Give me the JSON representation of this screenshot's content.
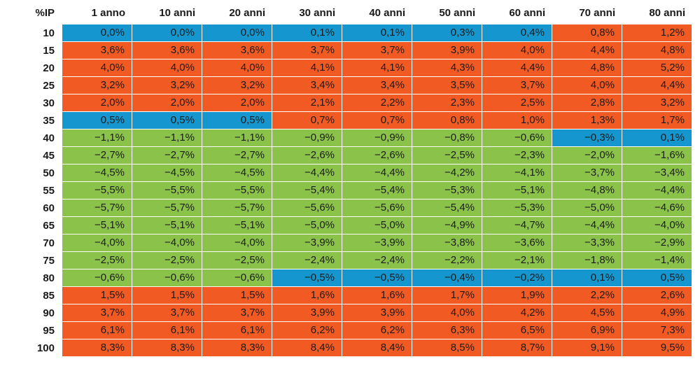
{
  "chart_data": {
    "type": "heatmap",
    "title": "",
    "row_header": "%IP",
    "columns": [
      "1 anno",
      "10 anni",
      "20 anni",
      "30 anni",
      "40 anni",
      "50 anni",
      "60 anni",
      "70 anni",
      "80 anni"
    ],
    "rows": [
      "10",
      "15",
      "20",
      "25",
      "30",
      "35",
      "40",
      "45",
      "50",
      "55",
      "60",
      "65",
      "70",
      "75",
      "80",
      "85",
      "90",
      "95",
      "100"
    ],
    "values": [
      [
        "0,0%",
        "0,0%",
        "0,0%",
        "0,1%",
        "0,1%",
        "0,3%",
        "0,4%",
        "0,8%",
        "1,2%"
      ],
      [
        "3,6%",
        "3,6%",
        "3,6%",
        "3,7%",
        "3,7%",
        "3,9%",
        "4,0%",
        "4,4%",
        "4,8%"
      ],
      [
        "4,0%",
        "4,0%",
        "4,0%",
        "4,1%",
        "4,1%",
        "4,3%",
        "4,4%",
        "4,8%",
        "5,2%"
      ],
      [
        "3,2%",
        "3,2%",
        "3,2%",
        "3,4%",
        "3,4%",
        "3,5%",
        "3,7%",
        "4,0%",
        "4,4%"
      ],
      [
        "2,0%",
        "2,0%",
        "2,0%",
        "2,1%",
        "2,2%",
        "2,3%",
        "2,5%",
        "2,8%",
        "3,2%"
      ],
      [
        "0,5%",
        "0,5%",
        "0,5%",
        "0,7%",
        "0,7%",
        "0,8%",
        "1,0%",
        "1,3%",
        "1,7%"
      ],
      [
        "-1,1%",
        "-1,1%",
        "-1,1%",
        "-0,9%",
        "-0,9%",
        "-0,8%",
        "-0,6%",
        "-0,3%",
        "0,1%"
      ],
      [
        "-2,7%",
        "-2,7%",
        "-2,7%",
        "-2,6%",
        "-2,6%",
        "-2,5%",
        "-2,3%",
        "-2,0%",
        "-1,6%"
      ],
      [
        "-4,5%",
        "-4,5%",
        "-4,5%",
        "-4,4%",
        "-4,4%",
        "-4,2%",
        "-4,1%",
        "-3,7%",
        "-3,4%"
      ],
      [
        "-5,5%",
        "-5,5%",
        "-5,5%",
        "-5,4%",
        "-5,4%",
        "-5,3%",
        "-5,1%",
        "-4,8%",
        "-4,4%"
      ],
      [
        "-5,7%",
        "-5,7%",
        "-5,7%",
        "-5,6%",
        "-5,6%",
        "-5,4%",
        "-5,3%",
        "-5,0%",
        "-4,6%"
      ],
      [
        "-5,1%",
        "-5,1%",
        "-5,1%",
        "-5,0%",
        "-5,0%",
        "-4,9%",
        "-4,7%",
        "-4,4%",
        "-4,0%"
      ],
      [
        "-4,0%",
        "-4,0%",
        "-4,0%",
        "-3,9%",
        "-3,9%",
        "-3,8%",
        "-3,6%",
        "-3,3%",
        "-2,9%"
      ],
      [
        "-2,5%",
        "-2,5%",
        "-2,5%",
        "-2,4%",
        "-2,4%",
        "-2,2%",
        "-2,1%",
        "-1,8%",
        "-1,4%"
      ],
      [
        "-0,6%",
        "-0,6%",
        "-0,6%",
        "-0,5%",
        "-0,5%",
        "-0,4%",
        "-0,2%",
        "0,1%",
        "0,5%"
      ],
      [
        "1,5%",
        "1,5%",
        "1,5%",
        "1,6%",
        "1,6%",
        "1,7%",
        "1,9%",
        "2,2%",
        "2,6%"
      ],
      [
        "3,7%",
        "3,7%",
        "3,7%",
        "3,9%",
        "3,9%",
        "4,0%",
        "4,2%",
        "4,5%",
        "4,9%"
      ],
      [
        "6,1%",
        "6,1%",
        "6,1%",
        "6,2%",
        "6,2%",
        "6,3%",
        "6,5%",
        "6,9%",
        "7,3%"
      ],
      [
        "8,3%",
        "8,3%",
        "8,3%",
        "8,4%",
        "8,4%",
        "8,5%",
        "8,7%",
        "9,1%",
        "9,5%"
      ]
    ],
    "categories": [
      [
        "b",
        "b",
        "b",
        "b",
        "b",
        "b",
        "b",
        "o",
        "o"
      ],
      [
        "o",
        "o",
        "o",
        "o",
        "o",
        "o",
        "o",
        "o",
        "o"
      ],
      [
        "o",
        "o",
        "o",
        "o",
        "o",
        "o",
        "o",
        "o",
        "o"
      ],
      [
        "o",
        "o",
        "o",
        "o",
        "o",
        "o",
        "o",
        "o",
        "o"
      ],
      [
        "o",
        "o",
        "o",
        "o",
        "o",
        "o",
        "o",
        "o",
        "o"
      ],
      [
        "b",
        "b",
        "b",
        "o",
        "o",
        "o",
        "o",
        "o",
        "o"
      ],
      [
        "g",
        "g",
        "g",
        "g",
        "g",
        "g",
        "g",
        "b",
        "b"
      ],
      [
        "g",
        "g",
        "g",
        "g",
        "g",
        "g",
        "g",
        "g",
        "g"
      ],
      [
        "g",
        "g",
        "g",
        "g",
        "g",
        "g",
        "g",
        "g",
        "g"
      ],
      [
        "g",
        "g",
        "g",
        "g",
        "g",
        "g",
        "g",
        "g",
        "g"
      ],
      [
        "g",
        "g",
        "g",
        "g",
        "g",
        "g",
        "g",
        "g",
        "g"
      ],
      [
        "g",
        "g",
        "g",
        "g",
        "g",
        "g",
        "g",
        "g",
        "g"
      ],
      [
        "g",
        "g",
        "g",
        "g",
        "g",
        "g",
        "g",
        "g",
        "g"
      ],
      [
        "g",
        "g",
        "g",
        "g",
        "g",
        "g",
        "g",
        "g",
        "g"
      ],
      [
        "g",
        "g",
        "g",
        "b",
        "b",
        "b",
        "b",
        "b",
        "b"
      ],
      [
        "o",
        "o",
        "o",
        "o",
        "o",
        "o",
        "o",
        "o",
        "o"
      ],
      [
        "o",
        "o",
        "o",
        "o",
        "o",
        "o",
        "o",
        "o",
        "o"
      ],
      [
        "o",
        "o",
        "o",
        "o",
        "o",
        "o",
        "o",
        "o",
        "o"
      ],
      [
        "o",
        "o",
        "o",
        "o",
        "o",
        "o",
        "o",
        "o",
        "o"
      ]
    ],
    "colors": {
      "o": "#f15a22",
      "b": "#1596cf",
      "g": "#8bc34a"
    }
  }
}
